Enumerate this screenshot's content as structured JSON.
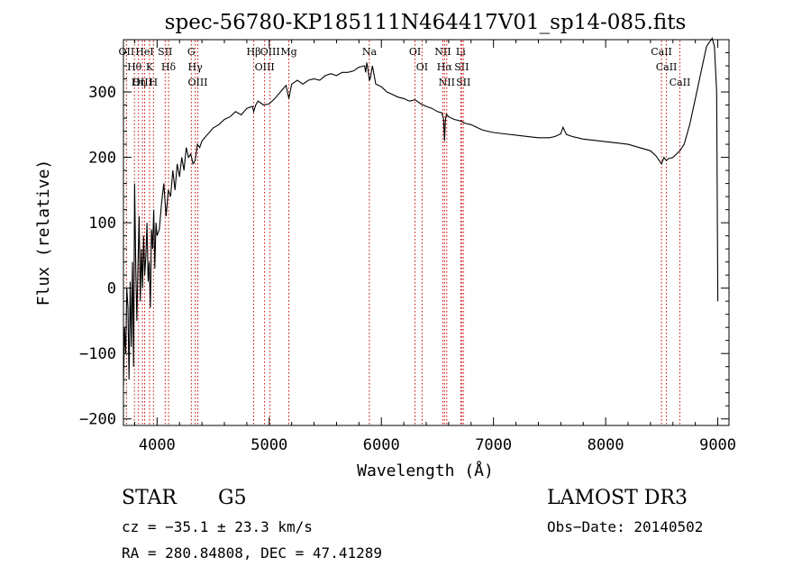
{
  "chart_data": {
    "type": "line",
    "title": "spec-56780-KP185111N464417V01_sp14-085.fits",
    "xlabel": "Wavelength (Å)",
    "ylabel": "Flux (relative)",
    "xlim": [
      3700,
      9100
    ],
    "ylim": [
      -210,
      380
    ],
    "xticks": [
      4000,
      5000,
      6000,
      7000,
      8000,
      9000
    ],
    "xtick_labels": [
      "4000",
      "5000",
      "6000",
      "7000",
      "8000",
      "9000"
    ],
    "yticks": [
      -200,
      -100,
      0,
      100,
      200,
      300
    ],
    "ytick_labels": [
      "−200",
      "−100",
      "0",
      "100",
      "200",
      "300"
    ],
    "grid": false,
    "line_color": "#000000",
    "marker_color": "#cc0000",
    "series": [
      {
        "x": [
          3700,
          3710,
          3720,
          3730,
          3740,
          3750,
          3760,
          3770,
          3780,
          3790,
          3800,
          3810,
          3820,
          3830,
          3840,
          3850,
          3860,
          3870,
          3880,
          3890,
          3900,
          3910,
          3920,
          3930,
          3940,
          3950,
          3960,
          3970,
          3980,
          3990,
          4000,
          4020,
          4040,
          4060,
          4080,
          4100,
          4120,
          4140,
          4160,
          4180,
          4200,
          4220,
          4240,
          4260,
          4280,
          4300,
          4320,
          4340,
          4360,
          4380,
          4400,
          4450,
          4500,
          4550,
          4600,
          4650,
          4700,
          4750,
          4800,
          4850,
          4861,
          4880,
          4900,
          4950,
          5000,
          5050,
          5100,
          5150,
          5175,
          5200,
          5250,
          5300,
          5350,
          5400,
          5450,
          5500,
          5550,
          5600,
          5650,
          5700,
          5750,
          5800,
          5850,
          5860,
          5870,
          5880,
          5893,
          5900,
          5920,
          5950,
          6000,
          6050,
          6100,
          6150,
          6200,
          6250,
          6300,
          6350,
          6400,
          6450,
          6500,
          6540,
          6555,
          6563,
          6570,
          6580,
          6600,
          6650,
          6700,
          6750,
          6800,
          6850,
          6900,
          6950,
          7000,
          7100,
          7200,
          7300,
          7400,
          7500,
          7550,
          7600,
          7620,
          7650,
          7700,
          7800,
          7900,
          8000,
          8100,
          8200,
          8300,
          8400,
          8450,
          8498,
          8520,
          8542,
          8560,
          8600,
          8662,
          8700,
          8750,
          8800,
          8850,
          8900,
          8950,
          8970,
          8990,
          9000
        ],
        "y": [
          -150,
          -60,
          -100,
          0,
          -30,
          -140,
          10,
          -90,
          40,
          -120,
          160,
          30,
          -50,
          40,
          110,
          -20,
          60,
          0,
          80,
          20,
          50,
          100,
          10,
          40,
          -30,
          90,
          60,
          120,
          30,
          100,
          80,
          90,
          130,
          160,
          110,
          150,
          140,
          180,
          150,
          190,
          170,
          200,
          180,
          215,
          200,
          205,
          190,
          195,
          220,
          215,
          225,
          235,
          245,
          250,
          258,
          262,
          270,
          265,
          275,
          278,
          270,
          280,
          286,
          280,
          282,
          290,
          300,
          310,
          290,
          312,
          318,
          312,
          318,
          320,
          318,
          325,
          328,
          325,
          330,
          330,
          332,
          338,
          340,
          330,
          345,
          335,
          318,
          320,
          340,
          312,
          308,
          300,
          296,
          292,
          290,
          286,
          288,
          282,
          278,
          275,
          270,
          268,
          258,
          225,
          255,
          266,
          262,
          258,
          256,
          252,
          250,
          246,
          242,
          240,
          238,
          236,
          234,
          232,
          230,
          230,
          232,
          236,
          246,
          235,
          232,
          228,
          226,
          224,
          222,
          220,
          215,
          210,
          202,
          190,
          200,
          195,
          198,
          200,
          210,
          220,
          250,
          290,
          330,
          370,
          382,
          370,
          300,
          -20
        ]
      }
    ],
    "annotations": [
      {
        "label": "Hθ",
        "x": 3798
      },
      {
        "label": "OII",
        "x": 3727
      },
      {
        "label": "OIII",
        "x": 3869
      },
      {
        "label": "Hη",
        "x": 3835
      },
      {
        "label": "K",
        "x": 3933
      },
      {
        "label": "HeI",
        "x": 3889
      },
      {
        "label": "H",
        "x": 3968
      },
      {
        "label": "SII",
        "x": 4072
      },
      {
        "label": "Hδ",
        "x": 4102
      },
      {
        "label": "OIII",
        "x": 4363
      },
      {
        "label": "Hγ",
        "x": 4340
      },
      {
        "label": "G",
        "x": 4305
      },
      {
        "label": "Hβ",
        "x": 4861
      },
      {
        "label": "OIII",
        "x": 4959
      },
      {
        "label": "OIII",
        "x": 5007
      },
      {
        "label": "Mg",
        "x": 5175
      },
      {
        "label": "Na",
        "x": 5893
      },
      {
        "label": "OI",
        "x": 6300
      },
      {
        "label": "OI",
        "x": 6363
      },
      {
        "label": "NII",
        "x": 6548
      },
      {
        "label": "Hα",
        "x": 6563
      },
      {
        "label": "NII",
        "x": 6583
      },
      {
        "label": "Li",
        "x": 6708
      },
      {
        "label": "SII",
        "x": 6716
      },
      {
        "label": "SII",
        "x": 6731
      },
      {
        "label": "CaII",
        "x": 8498
      },
      {
        "label": "CaII",
        "x": 8542
      },
      {
        "label": "CaII",
        "x": 8662
      }
    ]
  },
  "info": {
    "object_class": "STAR",
    "subclass": "G5",
    "survey": "LAMOST DR3",
    "redshift": "cz = −35.1 ± 23.3 km/s",
    "obs_date": "Obs−Date: 20140502",
    "coords": "RA = 280.84808, DEC =  47.41289"
  }
}
